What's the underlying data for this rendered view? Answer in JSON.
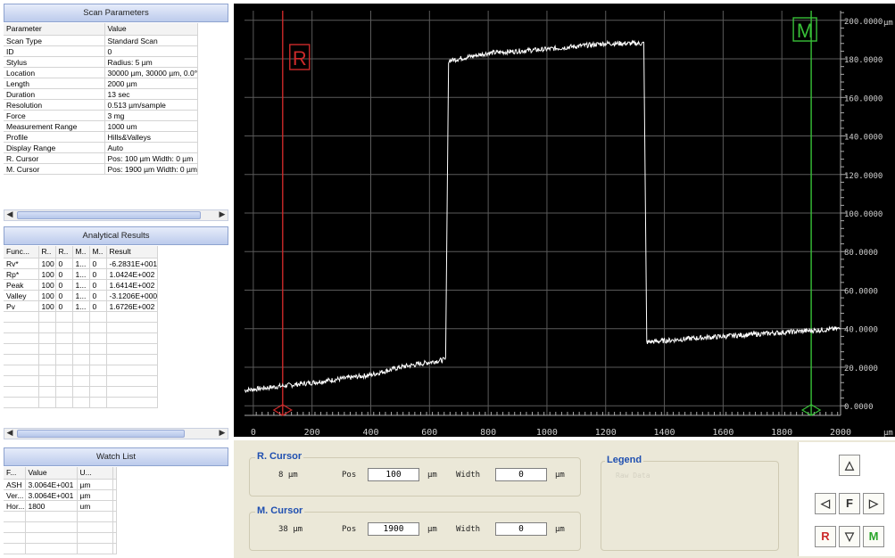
{
  "scan_parameters": {
    "title": "Scan Parameters",
    "col_parameter": "Parameter",
    "col_value": "Value",
    "rows": [
      {
        "p": "Scan Type",
        "v": "Standard Scan"
      },
      {
        "p": "ID",
        "v": "0"
      },
      {
        "p": "Stylus",
        "v": "Radius: 5 µm"
      },
      {
        "p": "Location",
        "v": "30000 µm, 30000 µm, 0.0°"
      },
      {
        "p": "Length",
        "v": "2000 µm"
      },
      {
        "p": "Duration",
        "v": "13 sec"
      },
      {
        "p": "Resolution",
        "v": "0.513 µm/sample"
      },
      {
        "p": "Force",
        "v": "3 mg"
      },
      {
        "p": "Measurement Range",
        "v": "1000 um"
      },
      {
        "p": "Profile",
        "v": "Hills&Valleys"
      },
      {
        "p": "Display Range",
        "v": "Auto"
      },
      {
        "p": "R. Cursor",
        "v": "Pos: 100 µm Width: 0 µm"
      },
      {
        "p": "M. Cursor",
        "v": "Pos: 1900 µm Width: 0 µm"
      }
    ]
  },
  "analytical_results": {
    "title": "Analytical Results",
    "headers": [
      "Func...",
      "R..",
      "R..",
      "M..",
      "M..",
      "Result"
    ],
    "rows": [
      [
        "Rv*",
        "100",
        "0",
        "1...",
        "0",
        "-6.2831E+001"
      ],
      [
        "Rp*",
        "100",
        "0",
        "1...",
        "0",
        "1.0424E+002"
      ],
      [
        "Peak",
        "100",
        "0",
        "1...",
        "0",
        "1.6414E+002"
      ],
      [
        "Valley",
        "100",
        "0",
        "1...",
        "0",
        "-3.1206E+000"
      ],
      [
        "Pv",
        "100",
        "0",
        "1...",
        "0",
        "1.6726E+002"
      ]
    ]
  },
  "watch_list": {
    "title": "Watch List",
    "headers": [
      "F...",
      "Value",
      "U..."
    ],
    "rows": [
      [
        "ASH",
        "3.0064E+001",
        "µm"
      ],
      [
        "Ver...",
        "3.0064E+001",
        "µm"
      ],
      [
        "Hor...",
        "1800",
        "um"
      ]
    ]
  },
  "chart_data": {
    "type": "line",
    "xlabel": "µm",
    "ylabel": "µm",
    "xlim": [
      -30,
      2000
    ],
    "ylim": [
      -5,
      205
    ],
    "x_ticks": [
      "0",
      "200",
      "400",
      "600",
      "800",
      "1000",
      "1200",
      "1400",
      "1600",
      "1800",
      "2000"
    ],
    "y_ticks": [
      "0.0000",
      "20.0000",
      "40.0000",
      "60.0000",
      "80.0000",
      "100.0000",
      "120.0000",
      "140.0000",
      "160.0000",
      "180.0000",
      "200.0000"
    ],
    "series": [
      {
        "x": [
          -30,
          200,
          400,
          500,
          655,
          665,
          800,
          1000,
          1200,
          1330,
          1340,
          1500,
          1700,
          2000
        ],
        "y": [
          8,
          12,
          16,
          20,
          24,
          179,
          183,
          185,
          188,
          188,
          33,
          35,
          37,
          40
        ]
      }
    ],
    "r_cursor": {
      "label": "R",
      "x": 100
    },
    "m_cursor": {
      "label": "M",
      "x": 1900
    },
    "colors": {
      "background": "#000000",
      "grid": "#5a5a5a",
      "trace": "#ffffff",
      "r_cursor": "#cc2a2a",
      "m_cursor": "#38c038",
      "axis_text": "#cfcfcf"
    }
  },
  "controls": {
    "r_cursor": {
      "title": "R. Cursor",
      "value": "8 µm",
      "pos_label": "Pos",
      "pos": "100",
      "unit": "µm",
      "width_label": "Width",
      "width": "0"
    },
    "m_cursor": {
      "title": "M. Cursor",
      "value": "38 µm",
      "pos_label": "Pos",
      "pos": "1900",
      "unit": "µm",
      "width_label": "Width",
      "width": "0"
    },
    "legend": {
      "title": "Legend",
      "item": "Raw Data"
    },
    "nav": {
      "up": "△",
      "left": "◁",
      "center": "F",
      "right": "▷",
      "r": "R",
      "down": "▽",
      "m": "M"
    }
  }
}
